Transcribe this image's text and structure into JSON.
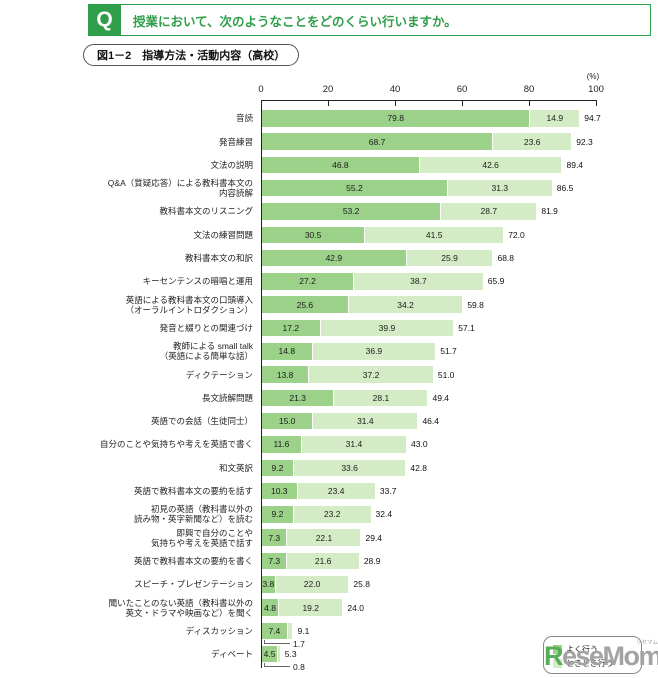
{
  "header": {
    "q_icon": "Q",
    "question": "授業において、次のようなことをどのくらい行いますか。"
  },
  "figure_label": "図1－2　指導方法・活動内容（高校）",
  "watermark": {
    "initial": "R",
    "rest": "eseMom.",
    "ruby": "リセマム"
  },
  "chart_data": {
    "type": "bar",
    "orientation": "horizontal",
    "stacked": true,
    "title": "図1－2　指導方法・活動内容（高校）",
    "x_axis": {
      "unit": "(%)",
      "ticks": [
        0,
        20,
        40,
        60,
        80,
        100
      ],
      "range": [
        0,
        100
      ]
    },
    "legend_position": "bottom-right",
    "grid": false,
    "categories": [
      "音読",
      "発音練習",
      "文法の説明",
      "Q&A（質疑応答）による教科書本文の\n内容読解",
      "教科書本文のリスニング",
      "文法の練習問題",
      "教科書本文の和訳",
      "キーセンテンスの暗唱と運用",
      "英語による教科書本文の口頭導入\n（オーラルイントロダクション）",
      "発音と綴りとの関連づけ",
      "教師による small talk\n（英語による簡単な話）",
      "ディクテーション",
      "長文読解問題",
      "英語での会話（生徒同士）",
      "自分のことや気持ちや考えを英語で書く",
      "和文英訳",
      "英語で教科書本文の要約を話す",
      "初見の英語（教科書以外の\n読み物・英字新聞など）を読む",
      "即興で自分のことや\n気持ちや考えを英語で話す",
      "英語で教科書本文の要約を書く",
      "スピーチ・プレゼンテーション",
      "聞いたことのない英語（教科書以外の\n英文・ドラマや映画など）を聞く",
      "ディスカッション",
      "ディベート"
    ],
    "series": [
      {
        "name": "よく行う",
        "color": "#9bd189",
        "values": [
          79.8,
          68.7,
          46.8,
          55.2,
          53.2,
          30.5,
          42.9,
          27.2,
          25.6,
          17.2,
          14.8,
          13.8,
          21.3,
          15.0,
          11.6,
          9.2,
          10.3,
          9.2,
          7.3,
          7.3,
          3.8,
          4.8,
          7.4,
          4.5
        ]
      },
      {
        "name": "ときどき行う",
        "color": "#d4ecc6",
        "values": [
          14.9,
          23.6,
          42.6,
          31.3,
          28.7,
          41.5,
          25.9,
          38.7,
          34.2,
          39.9,
          36.9,
          37.2,
          28.1,
          31.4,
          31.4,
          33.6,
          23.4,
          23.2,
          22.1,
          21.6,
          22.0,
          19.2,
          1.7,
          0.8
        ]
      }
    ],
    "totals": [
      94.7,
      92.3,
      89.4,
      86.5,
      81.9,
      72.0,
      68.8,
      65.9,
      59.8,
      57.1,
      51.7,
      51.0,
      49.4,
      46.4,
      43.0,
      42.8,
      33.7,
      32.4,
      29.4,
      28.9,
      25.8,
      24.0,
      9.1,
      5.3
    ]
  }
}
